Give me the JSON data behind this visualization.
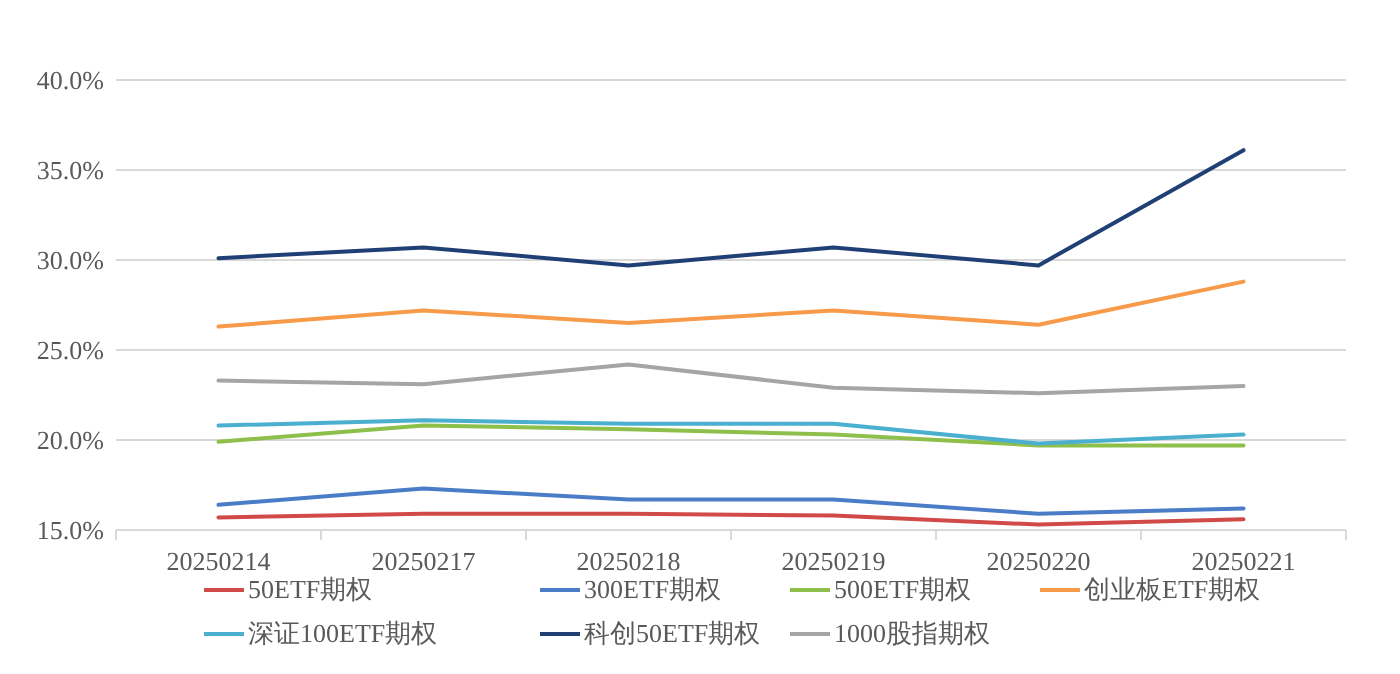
{
  "chart_data": {
    "type": "line",
    "categories": [
      "20250214",
      "20250217",
      "20250218",
      "20250219",
      "20250220",
      "20250221"
    ],
    "ylim": [
      15,
      40
    ],
    "yticks": [
      {
        "value": 15,
        "label": "15.0%"
      },
      {
        "value": 20,
        "label": "20.0%"
      },
      {
        "value": 25,
        "label": "25.0%"
      },
      {
        "value": 30,
        "label": "30.0%"
      },
      {
        "value": 35,
        "label": "35.0%"
      },
      {
        "value": 40,
        "label": "40.0%"
      }
    ],
    "grid": "y",
    "legend": "bottom",
    "marker": "none",
    "line_style": "solid",
    "series": [
      {
        "name": "50ETF期权",
        "color": "#d04a48",
        "values": [
          15.7,
          15.9,
          15.9,
          15.8,
          15.3,
          15.6
        ]
      },
      {
        "name": "300ETF期权",
        "color": "#4a7cc7",
        "values": [
          16.4,
          17.3,
          16.7,
          16.7,
          15.9,
          16.2
        ]
      },
      {
        "name": "500ETF期权",
        "color": "#8dbf4a",
        "values": [
          19.9,
          20.8,
          20.6,
          20.3,
          19.7,
          19.7
        ]
      },
      {
        "name": "创业板ETF期权",
        "color": "#f79a4a",
        "values": [
          26.3,
          27.2,
          26.5,
          27.2,
          26.4,
          28.8
        ]
      },
      {
        "name": "深证100ETF期权",
        "color": "#4bafcf",
        "values": [
          20.8,
          21.1,
          20.9,
          20.9,
          19.8,
          20.3
        ]
      },
      {
        "name": "科创50ETF期权",
        "color": "#1f3f75",
        "values": [
          30.1,
          30.7,
          29.7,
          30.7,
          29.7,
          36.1
        ]
      },
      {
        "name": "1000股指期权",
        "color": "#a5a5a5",
        "values": [
          23.3,
          23.1,
          24.2,
          22.9,
          22.6,
          23.0
        ]
      }
    ]
  }
}
